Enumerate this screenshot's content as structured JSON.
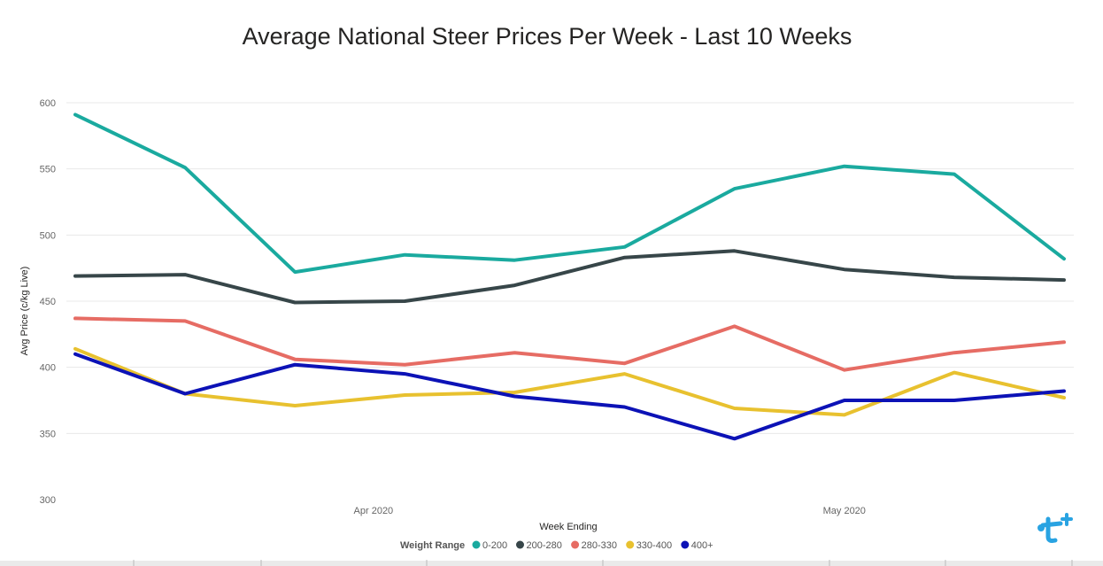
{
  "chart_data": {
    "type": "line",
    "title": "Average National Steer Prices Per Week - Last 10 Weeks",
    "xlabel": "Week Ending",
    "ylabel": "Avg Price (c/kg Live)",
    "ylim": [
      300,
      600
    ],
    "yticks": [
      300,
      350,
      400,
      450,
      500,
      550,
      600
    ],
    "x": [
      "2020-03-13",
      "2020-03-20",
      "2020-03-27",
      "2020-04-03",
      "2020-04-10",
      "2020-04-17",
      "2020-04-24",
      "2020-05-01",
      "2020-05-08",
      "2020-05-15"
    ],
    "xtick_labels": [
      {
        "date": "2020-04-01",
        "label": "Apr 2020"
      },
      {
        "date": "2020-05-01",
        "label": "May 2020"
      }
    ],
    "grid": true,
    "legend": {
      "title": "Weight Range",
      "position": "bottom"
    },
    "series": [
      {
        "name": "0-200",
        "color": "#1aaa9f",
        "values": [
          591,
          551,
          472,
          485,
          481,
          491,
          535,
          552,
          546,
          482
        ]
      },
      {
        "name": "200-280",
        "color": "#374649",
        "values": [
          469,
          470,
          449,
          450,
          462,
          483,
          488,
          474,
          468,
          466
        ]
      },
      {
        "name": "280-330",
        "color": "#e66c64",
        "values": [
          437,
          435,
          406,
          402,
          411,
          403,
          431,
          398,
          411,
          419
        ]
      },
      {
        "name": "330-400",
        "color": "#e8c12f",
        "values": [
          414,
          380,
          371,
          379,
          381,
          395,
          369,
          364,
          396,
          377
        ]
      },
      {
        "name": "400+",
        "color": "#0c12b6",
        "values": [
          410,
          380,
          402,
          395,
          378,
          370,
          346,
          375,
          375,
          382
        ]
      }
    ]
  }
}
